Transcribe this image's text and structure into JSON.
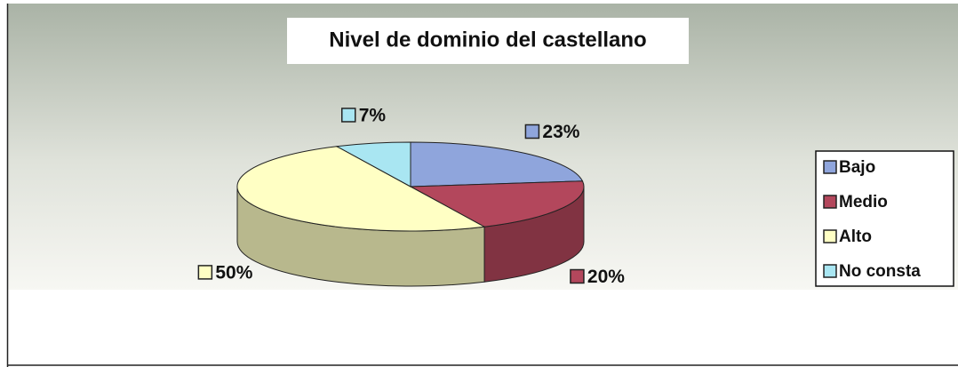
{
  "chart_data": {
    "type": "pie",
    "title": "Nivel de dominio del castellano",
    "categories": [
      "Bajo",
      "Medio",
      "Alto",
      "No consta"
    ],
    "values": [
      23,
      20,
      50,
      7
    ],
    "value_labels": [
      "23%",
      "20%",
      "50%",
      "7%"
    ],
    "colors": [
      "#8fa5dc",
      "#b3475c",
      "#ffffc4",
      "#a9e6f2"
    ],
    "legend": "right"
  }
}
